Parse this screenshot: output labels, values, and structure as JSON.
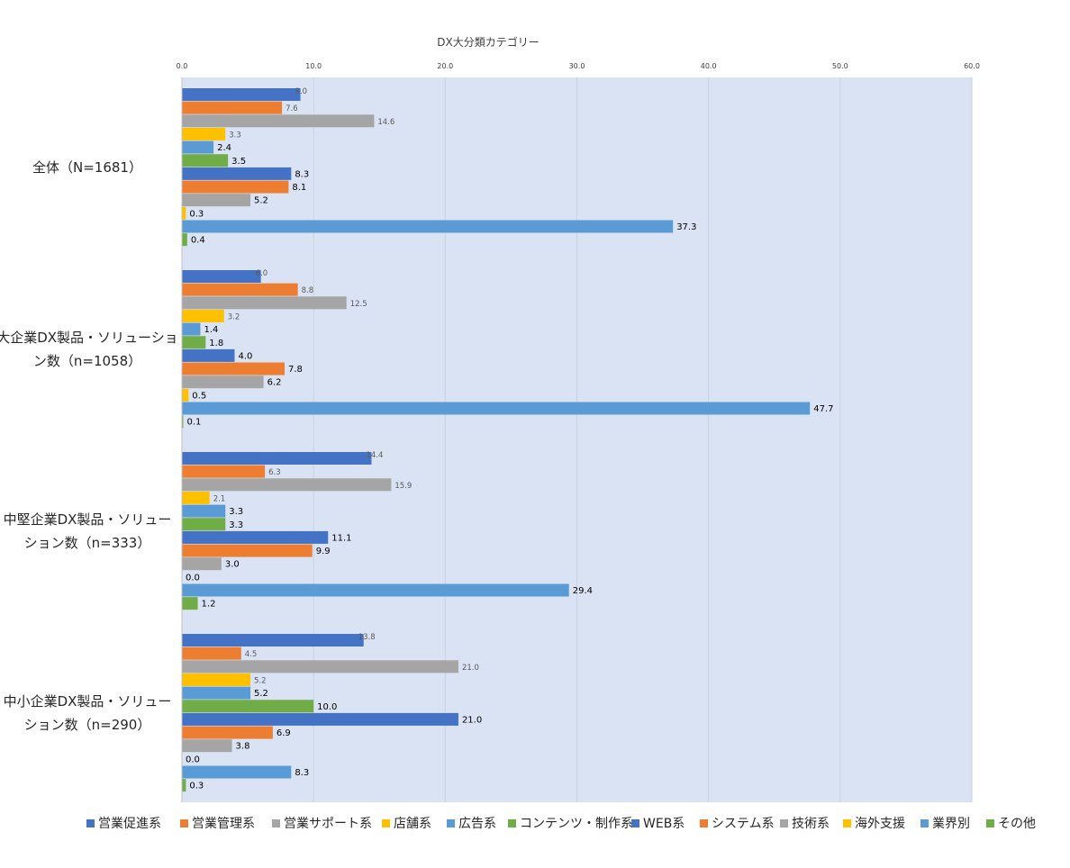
{
  "chart_data": {
    "type": "bar",
    "orientation": "horizontal",
    "title": "DX大分類カテゴリー",
    "xlim": [
      0,
      60
    ],
    "x_ticks": [
      "0.0",
      "10.0",
      "20.0",
      "30.0",
      "40.0",
      "50.0",
      "60.0"
    ],
    "grid": true,
    "legend_position": "bottom",
    "categories": [
      [
        "全体（N=1681）"
      ],
      [
        "大企業DX製品・ソリューショ",
        "ン数（n=1058）"
      ],
      [
        "中堅企業DX製品・ソリュー",
        "ション数（n=333）"
      ],
      [
        "中小企業DX製品・ソリュー",
        "ション数（n=290）"
      ]
    ],
    "series": [
      {
        "name": "営業促進系",
        "color": "#4472C4",
        "values": [
          9.0,
          6.0,
          14.4,
          13.8
        ],
        "labels": [
          "9.0",
          "6.0",
          "14.4",
          "13.8"
        ]
      },
      {
        "name": "営業管理系",
        "color": "#ED7D31",
        "values": [
          7.6,
          8.8,
          6.3,
          4.5
        ],
        "labels": [
          "7.6",
          "8.8",
          "6.3",
          "4.5"
        ]
      },
      {
        "name": "営業サポート系",
        "color": "#A5A5A5",
        "values": [
          14.6,
          12.5,
          15.9,
          21.0
        ],
        "labels": [
          "14.6",
          "12.5",
          "15.9",
          "21.0"
        ]
      },
      {
        "name": "店舗系",
        "color": "#FFC000",
        "values": [
          3.3,
          3.2,
          2.1,
          5.2
        ],
        "labels": [
          "3.3",
          "3.2",
          "2.1",
          "5.2"
        ]
      },
      {
        "name": "広告系",
        "color": "#5B9BD5",
        "values": [
          2.4,
          1.4,
          3.3,
          5.2
        ],
        "labels": [
          "2.4",
          "1.4",
          "3.3",
          "5.2"
        ]
      },
      {
        "name": "コンテンツ・制作系",
        "color": "#70AD47",
        "values": [
          3.5,
          1.8,
          3.3,
          10.0
        ],
        "labels": [
          "3.5",
          "1.8",
          "3.3",
          "10.0"
        ]
      },
      {
        "name": "WEB系",
        "color": "#4472C4",
        "values": [
          8.3,
          4.0,
          11.1,
          21.0
        ],
        "labels": [
          "8.3",
          "4.0",
          "11.1",
          "21.0"
        ]
      },
      {
        "name": "システム系",
        "color": "#ED7D31",
        "values": [
          8.1,
          7.8,
          9.9,
          6.9
        ],
        "labels": [
          "8.1",
          "7.8",
          "9.9",
          "6.9"
        ]
      },
      {
        "name": "技術系",
        "color": "#A5A5A5",
        "values": [
          5.2,
          6.2,
          3.0,
          3.8
        ],
        "labels": [
          "5.2",
          "6.2",
          "3.0",
          "3.8"
        ]
      },
      {
        "name": "海外支援",
        "color": "#FFC000",
        "values": [
          0.3,
          0.5,
          0.0,
          0.0
        ],
        "labels": [
          "0.3",
          "0.5",
          "0.0",
          "0.0"
        ]
      },
      {
        "name": "業界別",
        "color": "#5B9BD5",
        "values": [
          37.3,
          47.7,
          29.4,
          8.3
        ],
        "labels": [
          "37.3",
          "47.7",
          "29.4",
          "8.3"
        ]
      },
      {
        "name": "その他",
        "color": "#70AD47",
        "values": [
          0.4,
          0.1,
          1.2,
          0.3
        ],
        "labels": [
          "0.4",
          "0.1",
          "1.2",
          "0.3"
        ]
      }
    ]
  }
}
